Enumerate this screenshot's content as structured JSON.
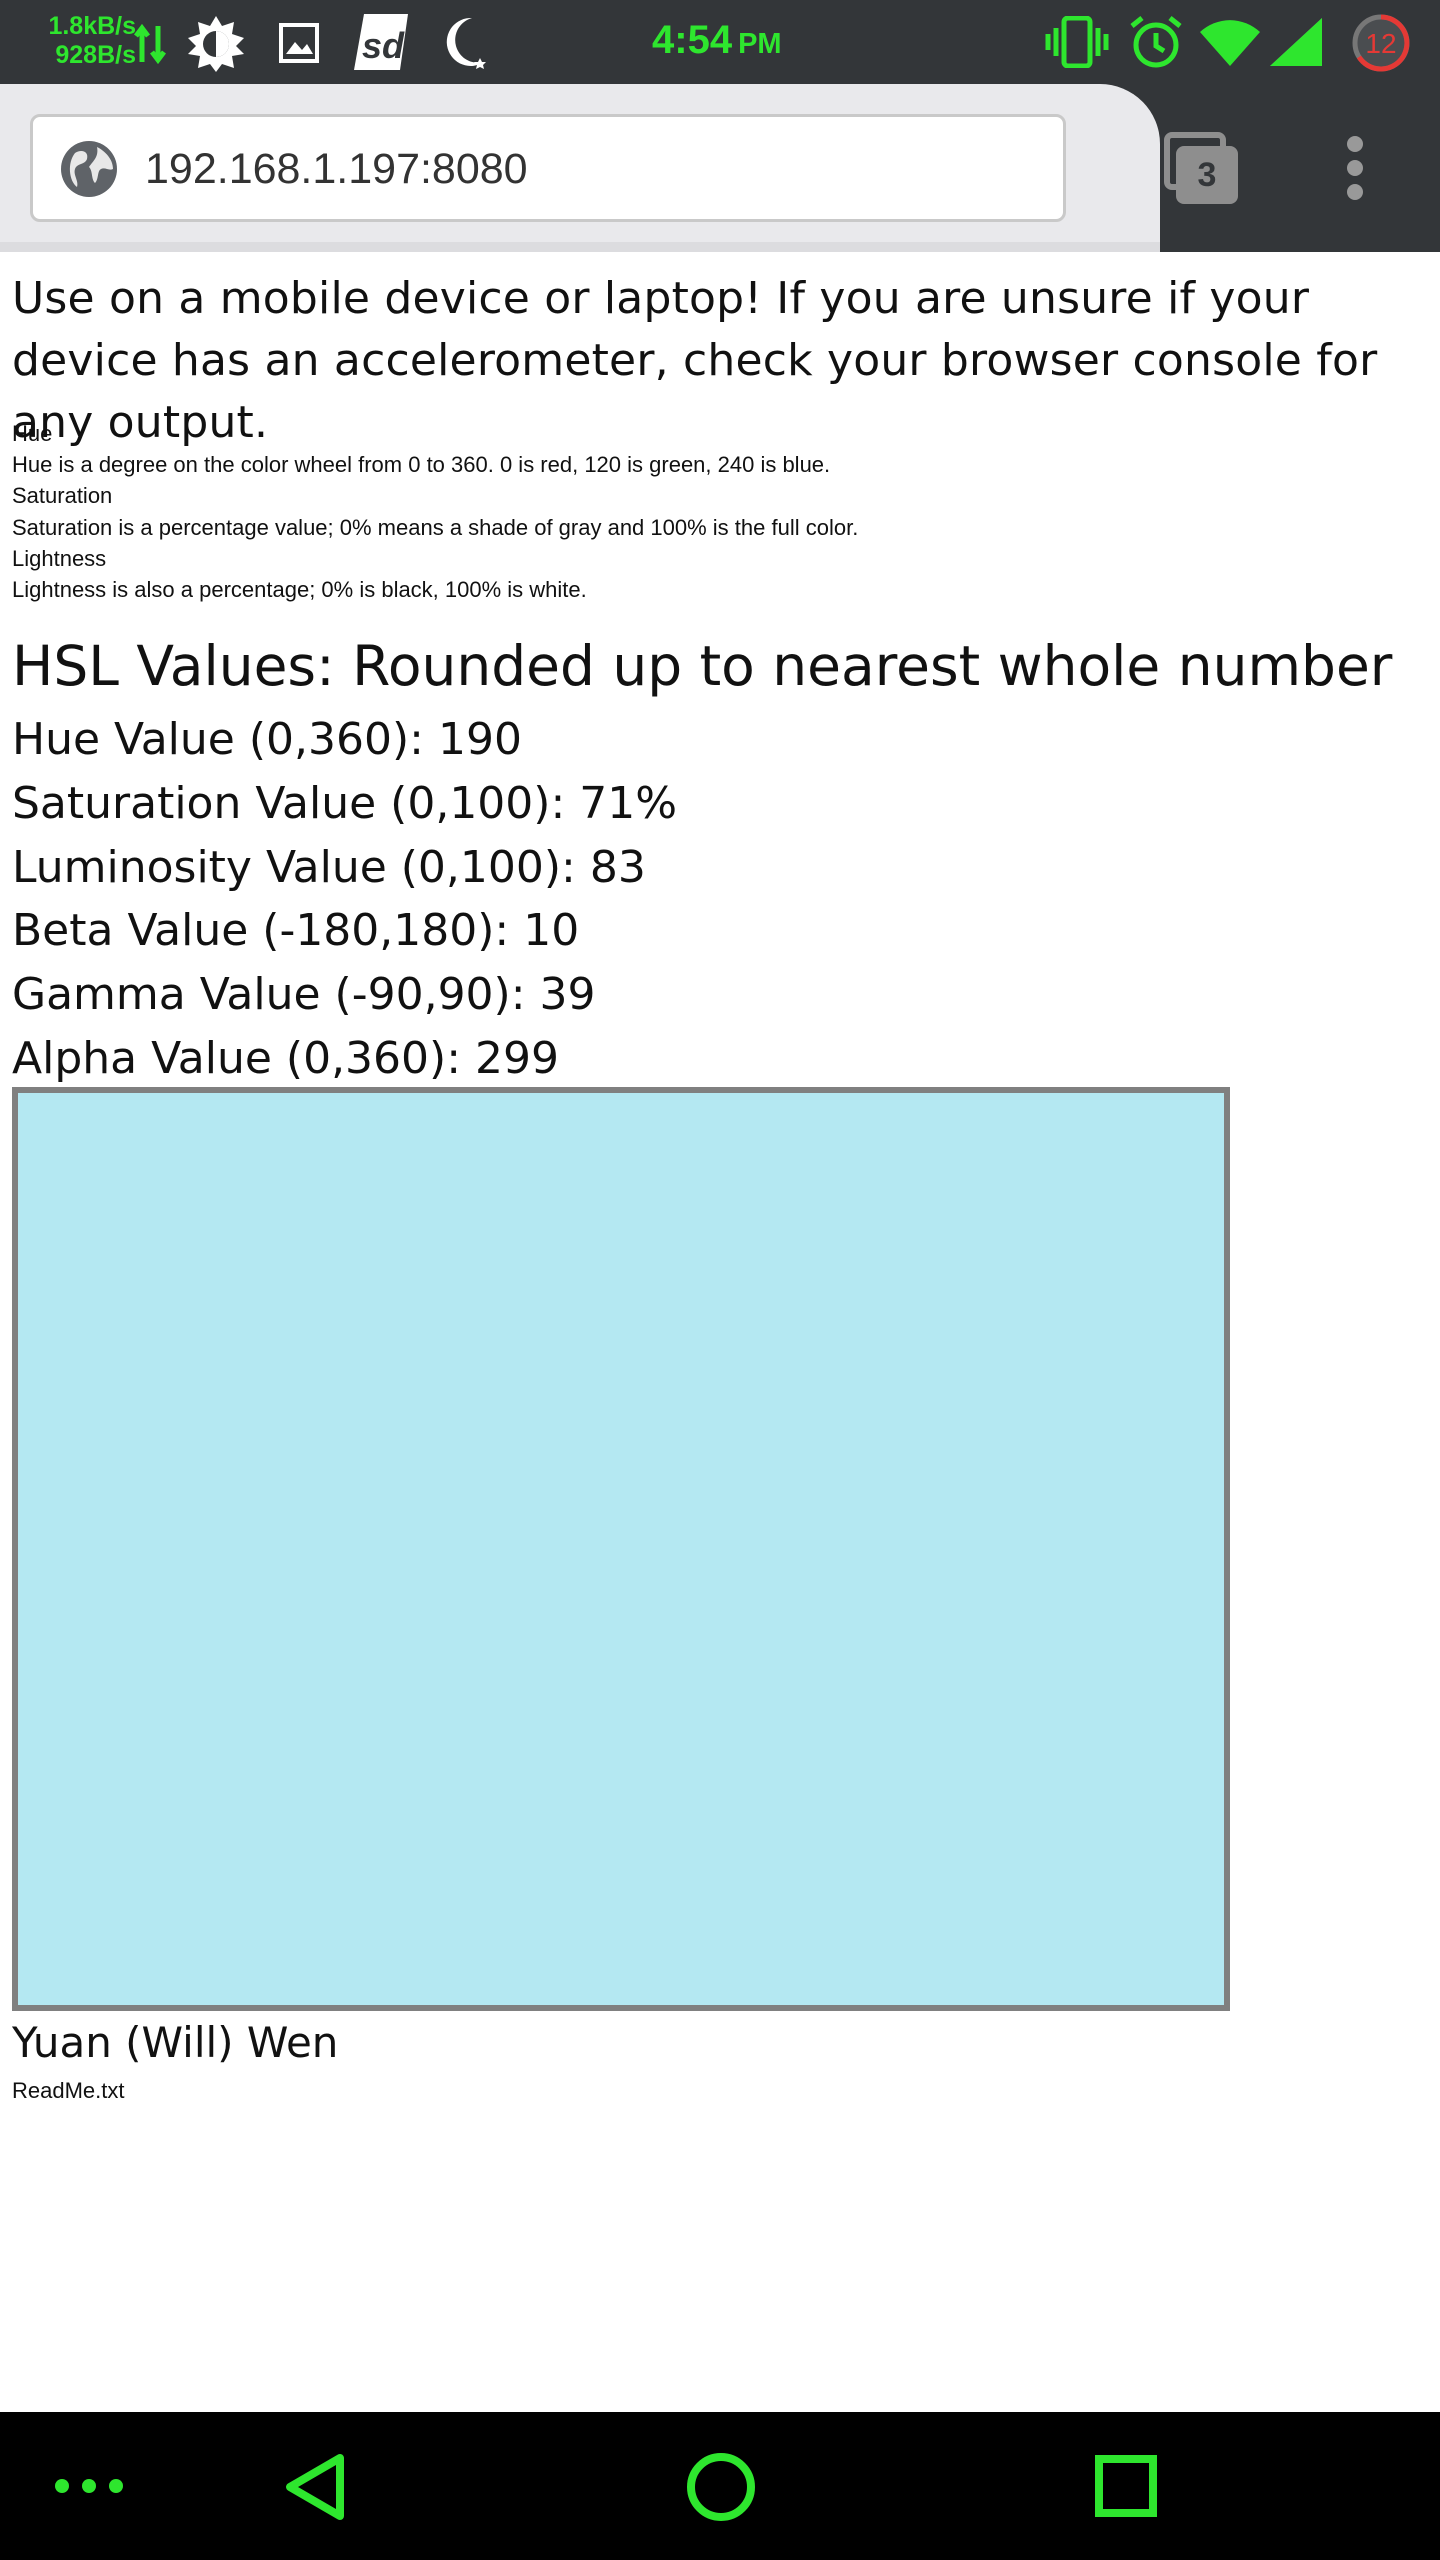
{
  "status_bar": {
    "net_up": "1.8kB/s",
    "net_down": "928B/s",
    "time": "4:54",
    "ampm": "PM",
    "notification_count": "12",
    "accent_color": "#2ee62e",
    "icons": [
      "data-transfer-icon",
      "brightness-icon",
      "image-icon",
      "sd-icon",
      "moon-icon",
      "vibrate-icon",
      "alarm-icon",
      "wifi-icon",
      "cell-signal-icon",
      "notification-badge-icon"
    ]
  },
  "browser": {
    "url": "192.168.1.197:8080",
    "tab_count": "3",
    "icons": [
      "globe-icon",
      "tabs-icon",
      "overflow-menu-icon"
    ]
  },
  "page": {
    "intro": "Use on a mobile device or laptop! If you are unsure if your device has an accelerometer, check your browser console for any output.",
    "definitions": [
      {
        "term": "Hue",
        "description": "Hue is a degree on the color wheel from 0 to 360. 0 is red, 120 is green, 240 is blue."
      },
      {
        "term": "Saturation",
        "description": "Saturation is a percentage value; 0% means a shade of gray and 100% is the full color."
      },
      {
        "term": "Lightness",
        "description": "Lightness is also a percentage; 0% is black, 100% is white."
      }
    ],
    "heading": "HSL Values: Rounded up to nearest whole number",
    "values": [
      "Hue Value (0,360): 190",
      "Saturation Value (0,100): 71%",
      "Luminosity Value (0,100): 83",
      "Beta Value (-180,180): 10",
      "Gamma Value (-90,90): 39",
      "Alpha Value (0,360): 299"
    ],
    "swatch_color": "#b4e8f2",
    "author": "Yuan (Will) Wen",
    "readme_link": "ReadMe.txt"
  },
  "nav_bar": {
    "color": "#2ee62e",
    "icons": [
      "more-icon",
      "back-icon",
      "home-icon",
      "recents-icon"
    ]
  }
}
